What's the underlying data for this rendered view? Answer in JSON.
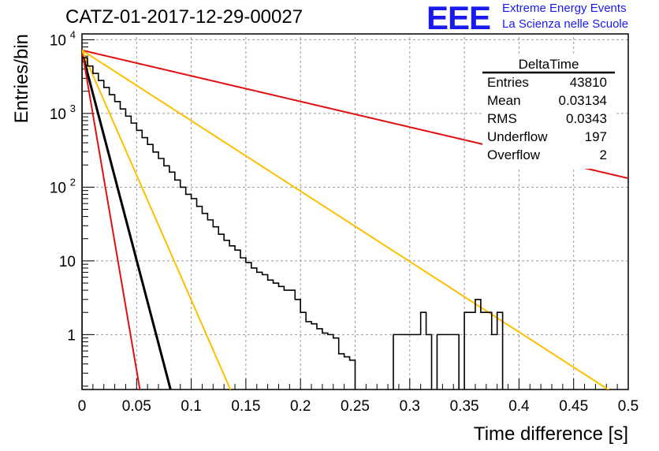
{
  "title": "CATZ-01-2017-12-29-00027",
  "logo": {
    "mark": "EEE",
    "line1": "Extreme Energy Events",
    "line2": "La Scienza nelle Scuole",
    "color": "#1a1aee"
  },
  "stats_box": {
    "name": "DeltaTime",
    "rows": [
      {
        "label": "Entries",
        "value": "43810"
      },
      {
        "label": "Mean",
        "value": "0.03134"
      },
      {
        "label": "RMS",
        "value": "0.0343"
      },
      {
        "label": "Underflow",
        "value": "197"
      },
      {
        "label": "Overflow",
        "value": "2"
      }
    ]
  },
  "chart_data": {
    "type": "line",
    "title": "CATZ-01-2017-12-29-00027",
    "xlabel": "Time difference [s]",
    "ylabel": "Entries/bin",
    "xlim": [
      0,
      0.5
    ],
    "ylim": [
      0.18,
      12000
    ],
    "yscale": "log",
    "grid": true,
    "x_ticks": [
      "0",
      "0.05",
      "0.1",
      "0.15",
      "0.2",
      "0.25",
      "0.3",
      "0.35",
      "0.4",
      "0.45",
      "0.5"
    ],
    "y_ticks": [
      {
        "value": 1,
        "label": "1"
      },
      {
        "value": 10,
        "label": "10"
      },
      {
        "value": 100,
        "label": "10",
        "sup": "2"
      },
      {
        "value": 1000,
        "label": "10",
        "sup": "3"
      },
      {
        "value": 10000,
        "label": "10",
        "sup": "4"
      }
    ],
    "histogram": {
      "name": "DeltaTime",
      "bin_width": 0.005,
      "color": "#000000",
      "values": [
        5700,
        4400,
        3500,
        2800,
        2250,
        1800,
        1450,
        1150,
        920,
        740,
        590,
        470,
        380,
        300,
        245,
        195,
        160,
        125,
        100,
        80,
        70,
        55,
        44,
        36,
        29,
        23,
        19,
        16,
        14,
        11,
        9.5,
        8,
        7,
        6.5,
        5.5,
        5,
        4.5,
        4,
        4,
        3,
        2,
        1.5,
        1.4,
        1.2,
        1.05,
        1.0,
        0.9,
        0.55,
        0.5,
        0.45,
        0,
        0,
        0,
        0,
        0,
        0,
        0,
        1,
        1,
        1,
        1,
        1,
        2,
        1,
        0,
        1,
        1,
        1,
        1,
        0,
        2,
        2,
        3,
        2,
        2,
        1,
        2,
        0,
        0,
        0,
        0,
        0,
        0,
        0,
        0,
        0,
        0,
        0,
        0,
        0,
        0,
        0,
        0,
        0,
        0,
        0,
        0,
        0,
        0,
        0
      ]
    },
    "series": [
      {
        "type": "exp",
        "amplitude": 6800,
        "slope": -130,
        "color": "#000000",
        "width": 3
      },
      {
        "type": "exp",
        "amplitude": 7200,
        "slope": -8,
        "color": "#e01010",
        "width": 2
      },
      {
        "type": "exp",
        "amplitude": 7200,
        "slope": -200,
        "color": "#e01010",
        "width": 2
      },
      {
        "type": "exp",
        "amplitude": 7200,
        "slope": -22,
        "color": "#ffbf00",
        "width": 2
      },
      {
        "type": "exp",
        "amplitude": 7200,
        "slope": -78,
        "color": "#ffbf00",
        "width": 2
      }
    ]
  }
}
